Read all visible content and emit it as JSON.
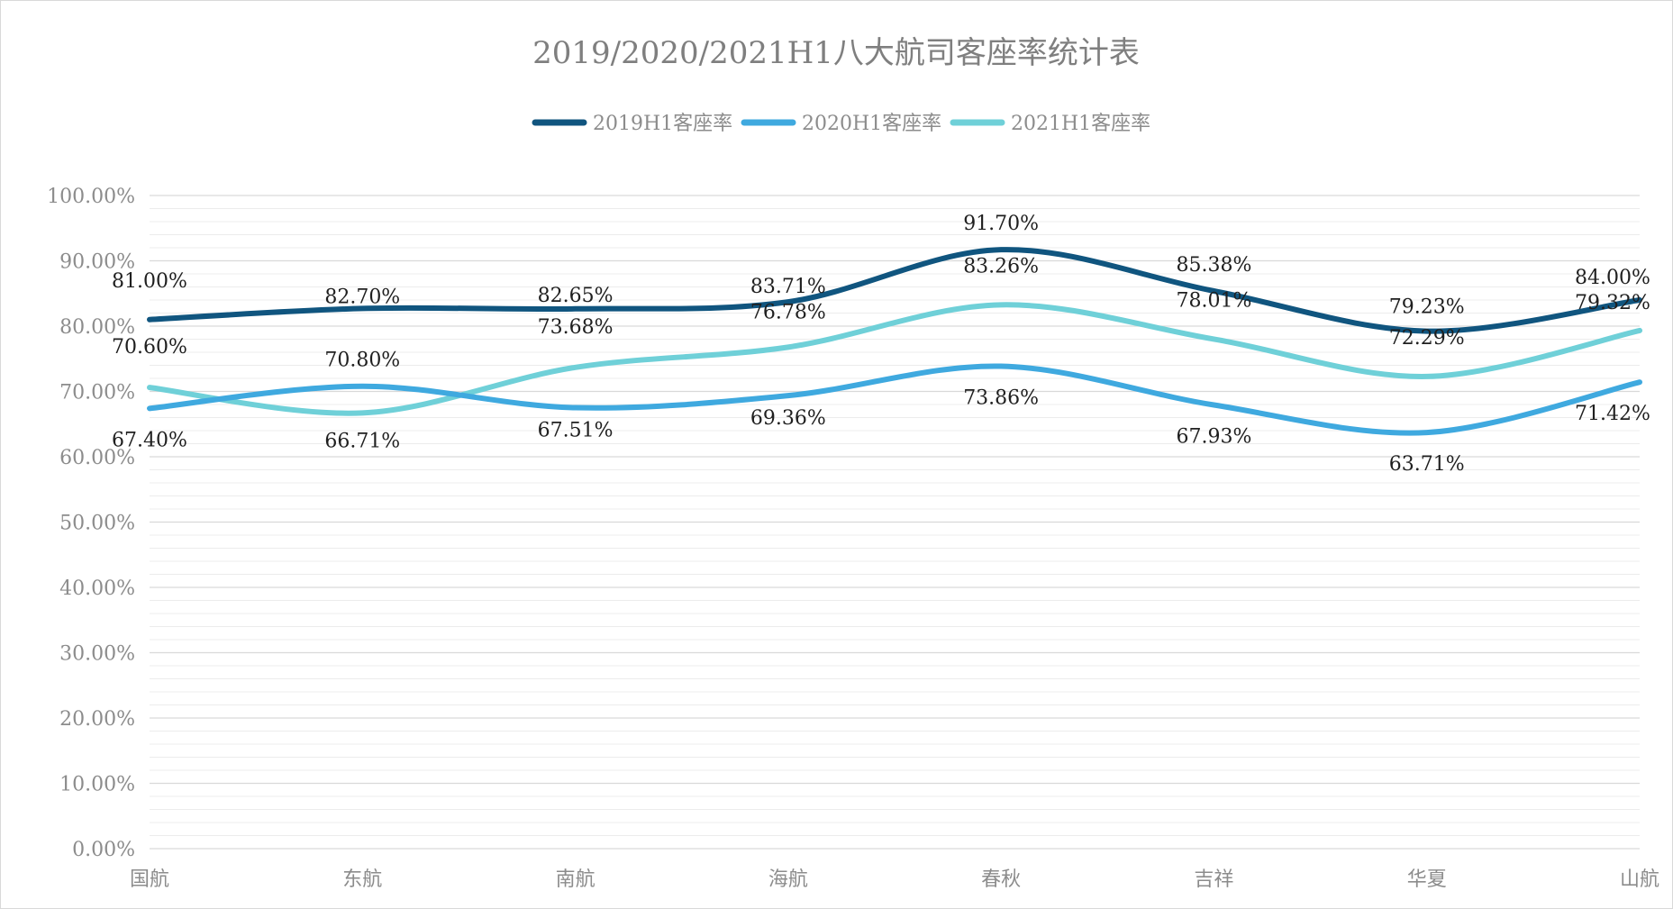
{
  "chart_data": {
    "type": "line",
    "title": "2019/2020/2021H1八大航司客座率统计表",
    "xlabel": "",
    "ylabel": "",
    "ylim": [
      0,
      100
    ],
    "ytick_step": 10,
    "ytick_labels": [
      "0.00%",
      "10.00%",
      "20.00%",
      "30.00%",
      "40.00%",
      "50.00%",
      "60.00%",
      "70.00%",
      "80.00%",
      "90.00%",
      "100.00%"
    ],
    "grid": true,
    "legend_position": "top-center",
    "smooth": true,
    "categories": [
      "国航",
      "东航",
      "南航",
      "海航",
      "春秋",
      "吉祥",
      "华夏",
      "山航"
    ],
    "series": [
      {
        "name": "2019H1客座率",
        "color": "#10557f",
        "values": [
          81.0,
          82.7,
          82.65,
          83.71,
          91.7,
          85.38,
          79.23,
          84.0
        ],
        "labels": [
          "81.00%",
          "82.70%",
          "82.65%",
          "83.71%",
          "91.70%",
          "85.38%",
          "79.23%",
          "84.00%"
        ]
      },
      {
        "name": "2020H1客座率",
        "color": "#3fa9df",
        "values": [
          67.4,
          70.8,
          67.51,
          69.36,
          73.86,
          67.93,
          63.71,
          71.42
        ],
        "labels": [
          "67.40%",
          "70.80%",
          "67.51%",
          "69.36%",
          "73.86%",
          "67.93%",
          "63.71%",
          "71.42%"
        ]
      },
      {
        "name": "2021H1客座率",
        "color": "#6fd0d8",
        "values": [
          70.6,
          66.71,
          73.68,
          76.78,
          83.26,
          78.01,
          72.29,
          79.32
        ],
        "labels": [
          "70.60%",
          "66.71%",
          "73.68%",
          "76.78%",
          "83.26%",
          "78.01%",
          "72.29%",
          "79.32%"
        ]
      }
    ]
  }
}
